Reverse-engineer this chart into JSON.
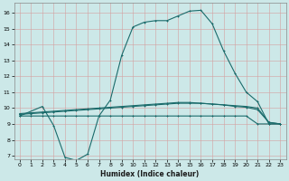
{
  "xlabel": "Humidex (Indice chaleur)",
  "bg_color": "#cce8e8",
  "line_color": "#1a6b6b",
  "grid_color": "#c8a0a0",
  "xlim": [
    -0.5,
    23.5
  ],
  "ylim": [
    6.8,
    16.6
  ],
  "xticks": [
    0,
    1,
    2,
    3,
    4,
    5,
    6,
    7,
    8,
    9,
    10,
    11,
    12,
    13,
    14,
    15,
    16,
    17,
    18,
    19,
    20,
    21,
    22,
    23
  ],
  "yticks": [
    7,
    8,
    9,
    10,
    11,
    12,
    13,
    14,
    15,
    16
  ],
  "line_main_x": [
    0,
    2,
    3,
    4,
    5,
    6,
    7,
    8,
    9,
    10,
    11,
    12,
    13,
    14,
    15,
    16,
    17,
    18,
    19,
    20,
    21,
    22,
    23
  ],
  "line_main_y": [
    9.5,
    10.1,
    8.9,
    6.9,
    6.7,
    7.1,
    9.5,
    10.5,
    13.3,
    15.1,
    15.4,
    15.5,
    15.5,
    15.8,
    16.1,
    16.15,
    15.3,
    13.6,
    12.2,
    11.0,
    10.4,
    9.0,
    9.0
  ],
  "line_flat_x": [
    0,
    1,
    2,
    3,
    4,
    5,
    6,
    7,
    8,
    9,
    10,
    11,
    12,
    13,
    14,
    15,
    16,
    17,
    18,
    19,
    20,
    21,
    22,
    23
  ],
  "line_flat_y": [
    9.5,
    9.5,
    9.5,
    9.5,
    9.5,
    9.5,
    9.5,
    9.5,
    9.5,
    9.5,
    9.5,
    9.5,
    9.5,
    9.5,
    9.5,
    9.5,
    9.5,
    9.5,
    9.5,
    9.5,
    9.5,
    9.0,
    9.0,
    9.0
  ],
  "line_mid1_x": [
    0,
    1,
    2,
    3,
    4,
    5,
    6,
    7,
    8,
    9,
    10,
    11,
    12,
    13,
    14,
    15,
    16,
    17,
    18,
    19,
    20,
    21,
    22,
    23
  ],
  "line_mid1_y": [
    9.6,
    9.65,
    9.7,
    9.75,
    9.8,
    9.85,
    9.9,
    9.95,
    10.0,
    10.05,
    10.1,
    10.15,
    10.2,
    10.25,
    10.3,
    10.3,
    10.3,
    10.25,
    10.2,
    10.15,
    10.1,
    10.0,
    9.1,
    9.0
  ],
  "line_mid2_x": [
    0,
    1,
    2,
    3,
    4,
    5,
    6,
    7,
    8,
    9,
    10,
    11,
    12,
    13,
    14,
    15,
    16,
    17,
    18,
    19,
    20,
    21,
    22,
    23
  ],
  "line_mid2_y": [
    9.65,
    9.7,
    9.75,
    9.8,
    9.85,
    9.9,
    9.95,
    10.0,
    10.05,
    10.1,
    10.15,
    10.2,
    10.25,
    10.3,
    10.35,
    10.35,
    10.3,
    10.25,
    10.2,
    10.1,
    10.05,
    9.9,
    9.1,
    9.0
  ]
}
